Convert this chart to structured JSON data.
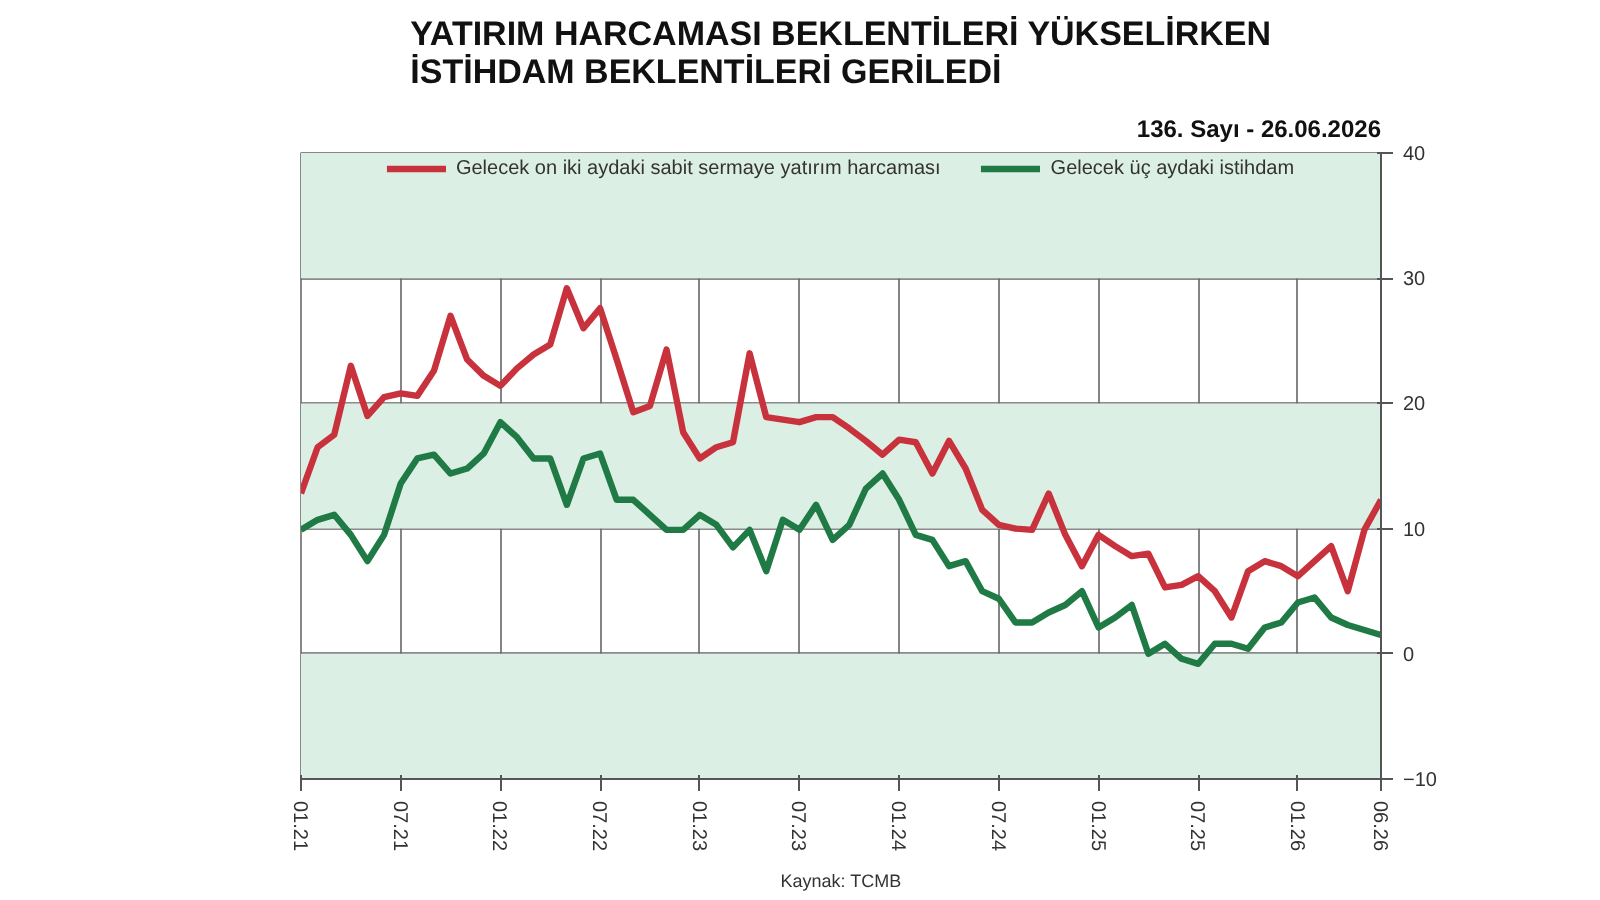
{
  "chart_data": {
    "type": "line",
    "title": "YATIRIM HARCAMASI BEKLENTİLERİ YÜKSELİRKEN\nİSTİHDAM BEKLENTİLERİ GERİLEDİ",
    "x": [
      "2021-01",
      "2021-02",
      "2021-03",
      "2021-04",
      "2021-05",
      "2021-06",
      "2021-07",
      "2021-08",
      "2021-09",
      "2021-10",
      "2021-11",
      "2021-12",
      "2022-01",
      "2022-02",
      "2022-03",
      "2022-04",
      "2022-05",
      "2022-06",
      "2022-07",
      "2022-08",
      "2022-09",
      "2022-10",
      "2022-11",
      "2022-12",
      "2023-01",
      "2023-02",
      "2023-03",
      "2023-04",
      "2023-05",
      "2023-06",
      "2023-07",
      "2023-08",
      "2023-09",
      "2023-10",
      "2023-11",
      "2023-12",
      "2024-01",
      "2024-02",
      "2024-03",
      "2024-04",
      "2024-05",
      "2024-06",
      "2024-07",
      "2024-08",
      "2024-09",
      "2024-10",
      "2024-11",
      "2024-12",
      "2025-01",
      "2025-02",
      "2025-03",
      "2025-04",
      "2025-05",
      "2025-06",
      "2025-07",
      "2025-08",
      "2025-09",
      "2025-10",
      "2025-11",
      "2025-12",
      "2026-01",
      "2026-02",
      "2026-03",
      "2026-04",
      "2026-05",
      "2026-06"
    ],
    "series": [
      {
        "name": "Gelecek on iki aydaki sabit sermaye yatırım harcaması",
        "color": "#c8323c",
        "values": [
          12.8,
          16.5,
          17.5,
          23,
          19,
          20.5,
          20.8,
          20.6,
          22.6,
          27,
          23.5,
          22.2,
          21.4,
          22.8,
          23.9,
          24.7,
          29.2,
          26,
          27.6,
          23.5,
          19.3,
          19.8,
          24.3,
          17.7,
          15.6,
          16.5,
          16.9,
          24,
          18.9,
          18.7,
          18.5,
          18.9,
          18.9,
          18,
          17,
          15.9,
          17.1,
          16.9,
          14.4,
          17,
          14.8,
          11.5,
          10.3,
          10,
          9.9,
          12.8,
          9.5,
          7,
          9.5,
          8.6,
          7.8,
          8,
          5.3,
          5.5,
          6.2,
          5,
          2.9,
          6.6,
          7.4,
          7,
          6.2,
          7.4,
          8.6,
          5,
          9.9,
          12.3
        ]
      },
      {
        "name": "Gelecek üç aydaki istihdam",
        "color": "#1f7a45",
        "values": [
          9.9,
          10.7,
          11.1,
          9.5,
          7.4,
          9.5,
          13.6,
          15.6,
          15.9,
          14.4,
          14.8,
          16,
          18.5,
          17.3,
          15.6,
          15.6,
          11.9,
          15.6,
          16,
          12.3,
          12.3,
          11.1,
          9.9,
          9.9,
          11.1,
          10.3,
          8.5,
          9.9,
          6.6,
          10.7,
          9.9,
          11.9,
          9.1,
          10.3,
          13.2,
          14.4,
          12.3,
          9.5,
          9.1,
          7,
          7.4,
          5,
          4.4,
          2.5,
          2.5,
          3.3,
          3.9,
          5,
          2.1,
          2.9,
          3.9,
          0,
          0.8,
          -0.4,
          -0.8,
          0.8,
          0.8,
          0.4,
          2.1,
          2.5,
          4.1,
          4.5,
          2.9,
          2.3,
          1.9,
          1.5
        ]
      }
    ],
    "xlim": [
      "2021-01",
      "2026-06"
    ],
    "xticks": [
      {
        "value": "2021-01",
        "label": "01.21"
      },
      {
        "value": "2021-07",
        "label": "07.21"
      },
      {
        "value": "2022-01",
        "label": "01.22"
      },
      {
        "value": "2022-07",
        "label": "07.22"
      },
      {
        "value": "2023-01",
        "label": "01.23"
      },
      {
        "value": "2023-07",
        "label": "07.23"
      },
      {
        "value": "2024-01",
        "label": "01.24"
      },
      {
        "value": "2024-07",
        "label": "07.24"
      },
      {
        "value": "2025-01",
        "label": "01.25"
      },
      {
        "value": "2025-07",
        "label": "07.25"
      },
      {
        "value": "2026-01",
        "label": "01.26"
      },
      {
        "value": "2026-06",
        "label": "06.26"
      }
    ],
    "ylim": [
      -10,
      40
    ],
    "yticks": [
      -10,
      0,
      10,
      20,
      30,
      40
    ],
    "bands": [
      {
        "axis": "y",
        "from": -10,
        "to": 0,
        "color": "#dcefe4"
      },
      {
        "axis": "y",
        "from": 10,
        "to": 20,
        "color": "#dcefe4"
      },
      {
        "axis": "y",
        "from": 30,
        "to": 40,
        "color": "#dcefe4"
      }
    ],
    "grid": true,
    "legend": "top",
    "annotations": [
      "Kaynak: TCMB",
      "136. Sayı - 26.06.2026"
    ]
  }
}
